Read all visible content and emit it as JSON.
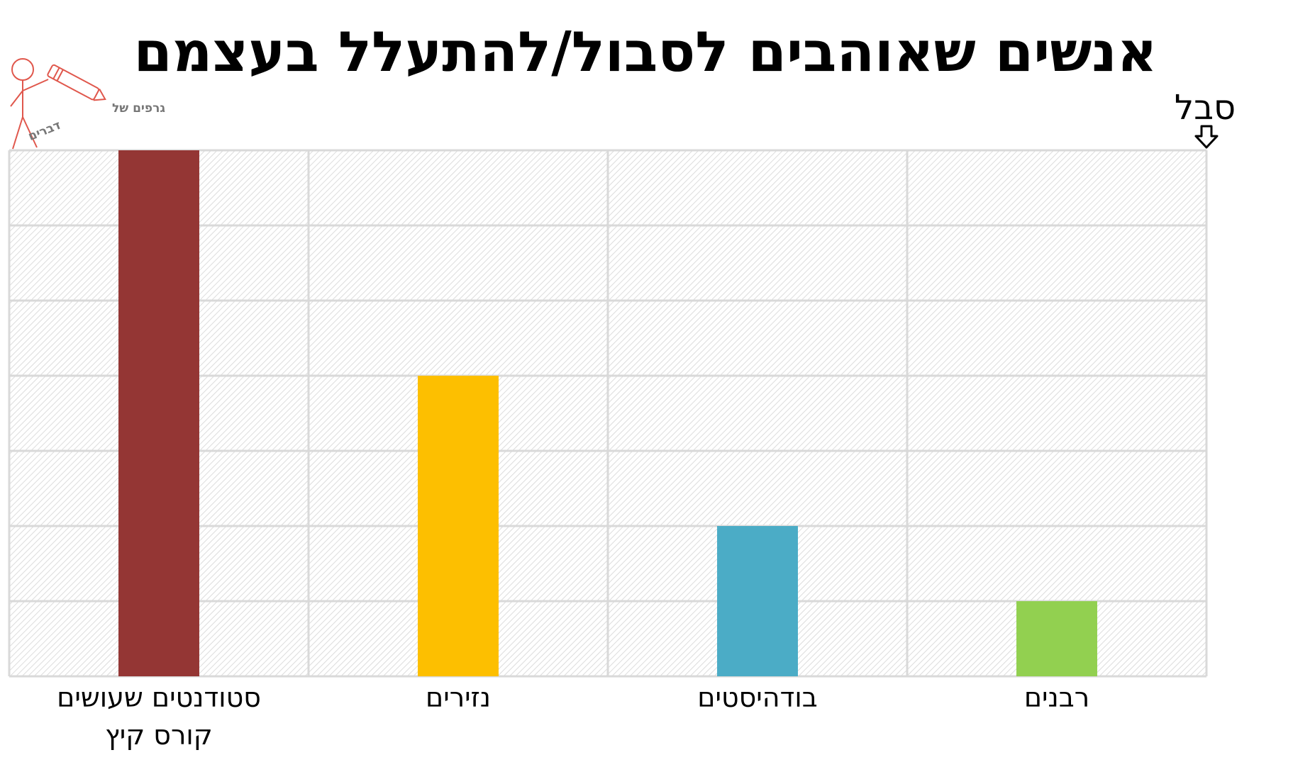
{
  "chart_data": {
    "type": "bar",
    "title": "אנשים שאוהבים לסבול/להתעלל בעצמם",
    "xlabel": "",
    "ylabel": "",
    "axis_marker": "סבל",
    "categories": [
      [
        "סטודנטים שעושים",
        "קורס קיץ"
      ],
      [
        "נזירים"
      ],
      [
        "בודהיסטים"
      ],
      [
        "רבנים"
      ]
    ],
    "values": [
      7,
      4,
      2,
      1
    ],
    "ylim": [
      0,
      7
    ],
    "colors": [
      "#943634",
      "#FDBF00",
      "#4BACC6",
      "#92D050"
    ],
    "grid": true,
    "legend": "none"
  },
  "logo": {
    "line1": "גרפים של",
    "line2": "דברים",
    "color": "#e0574c"
  }
}
